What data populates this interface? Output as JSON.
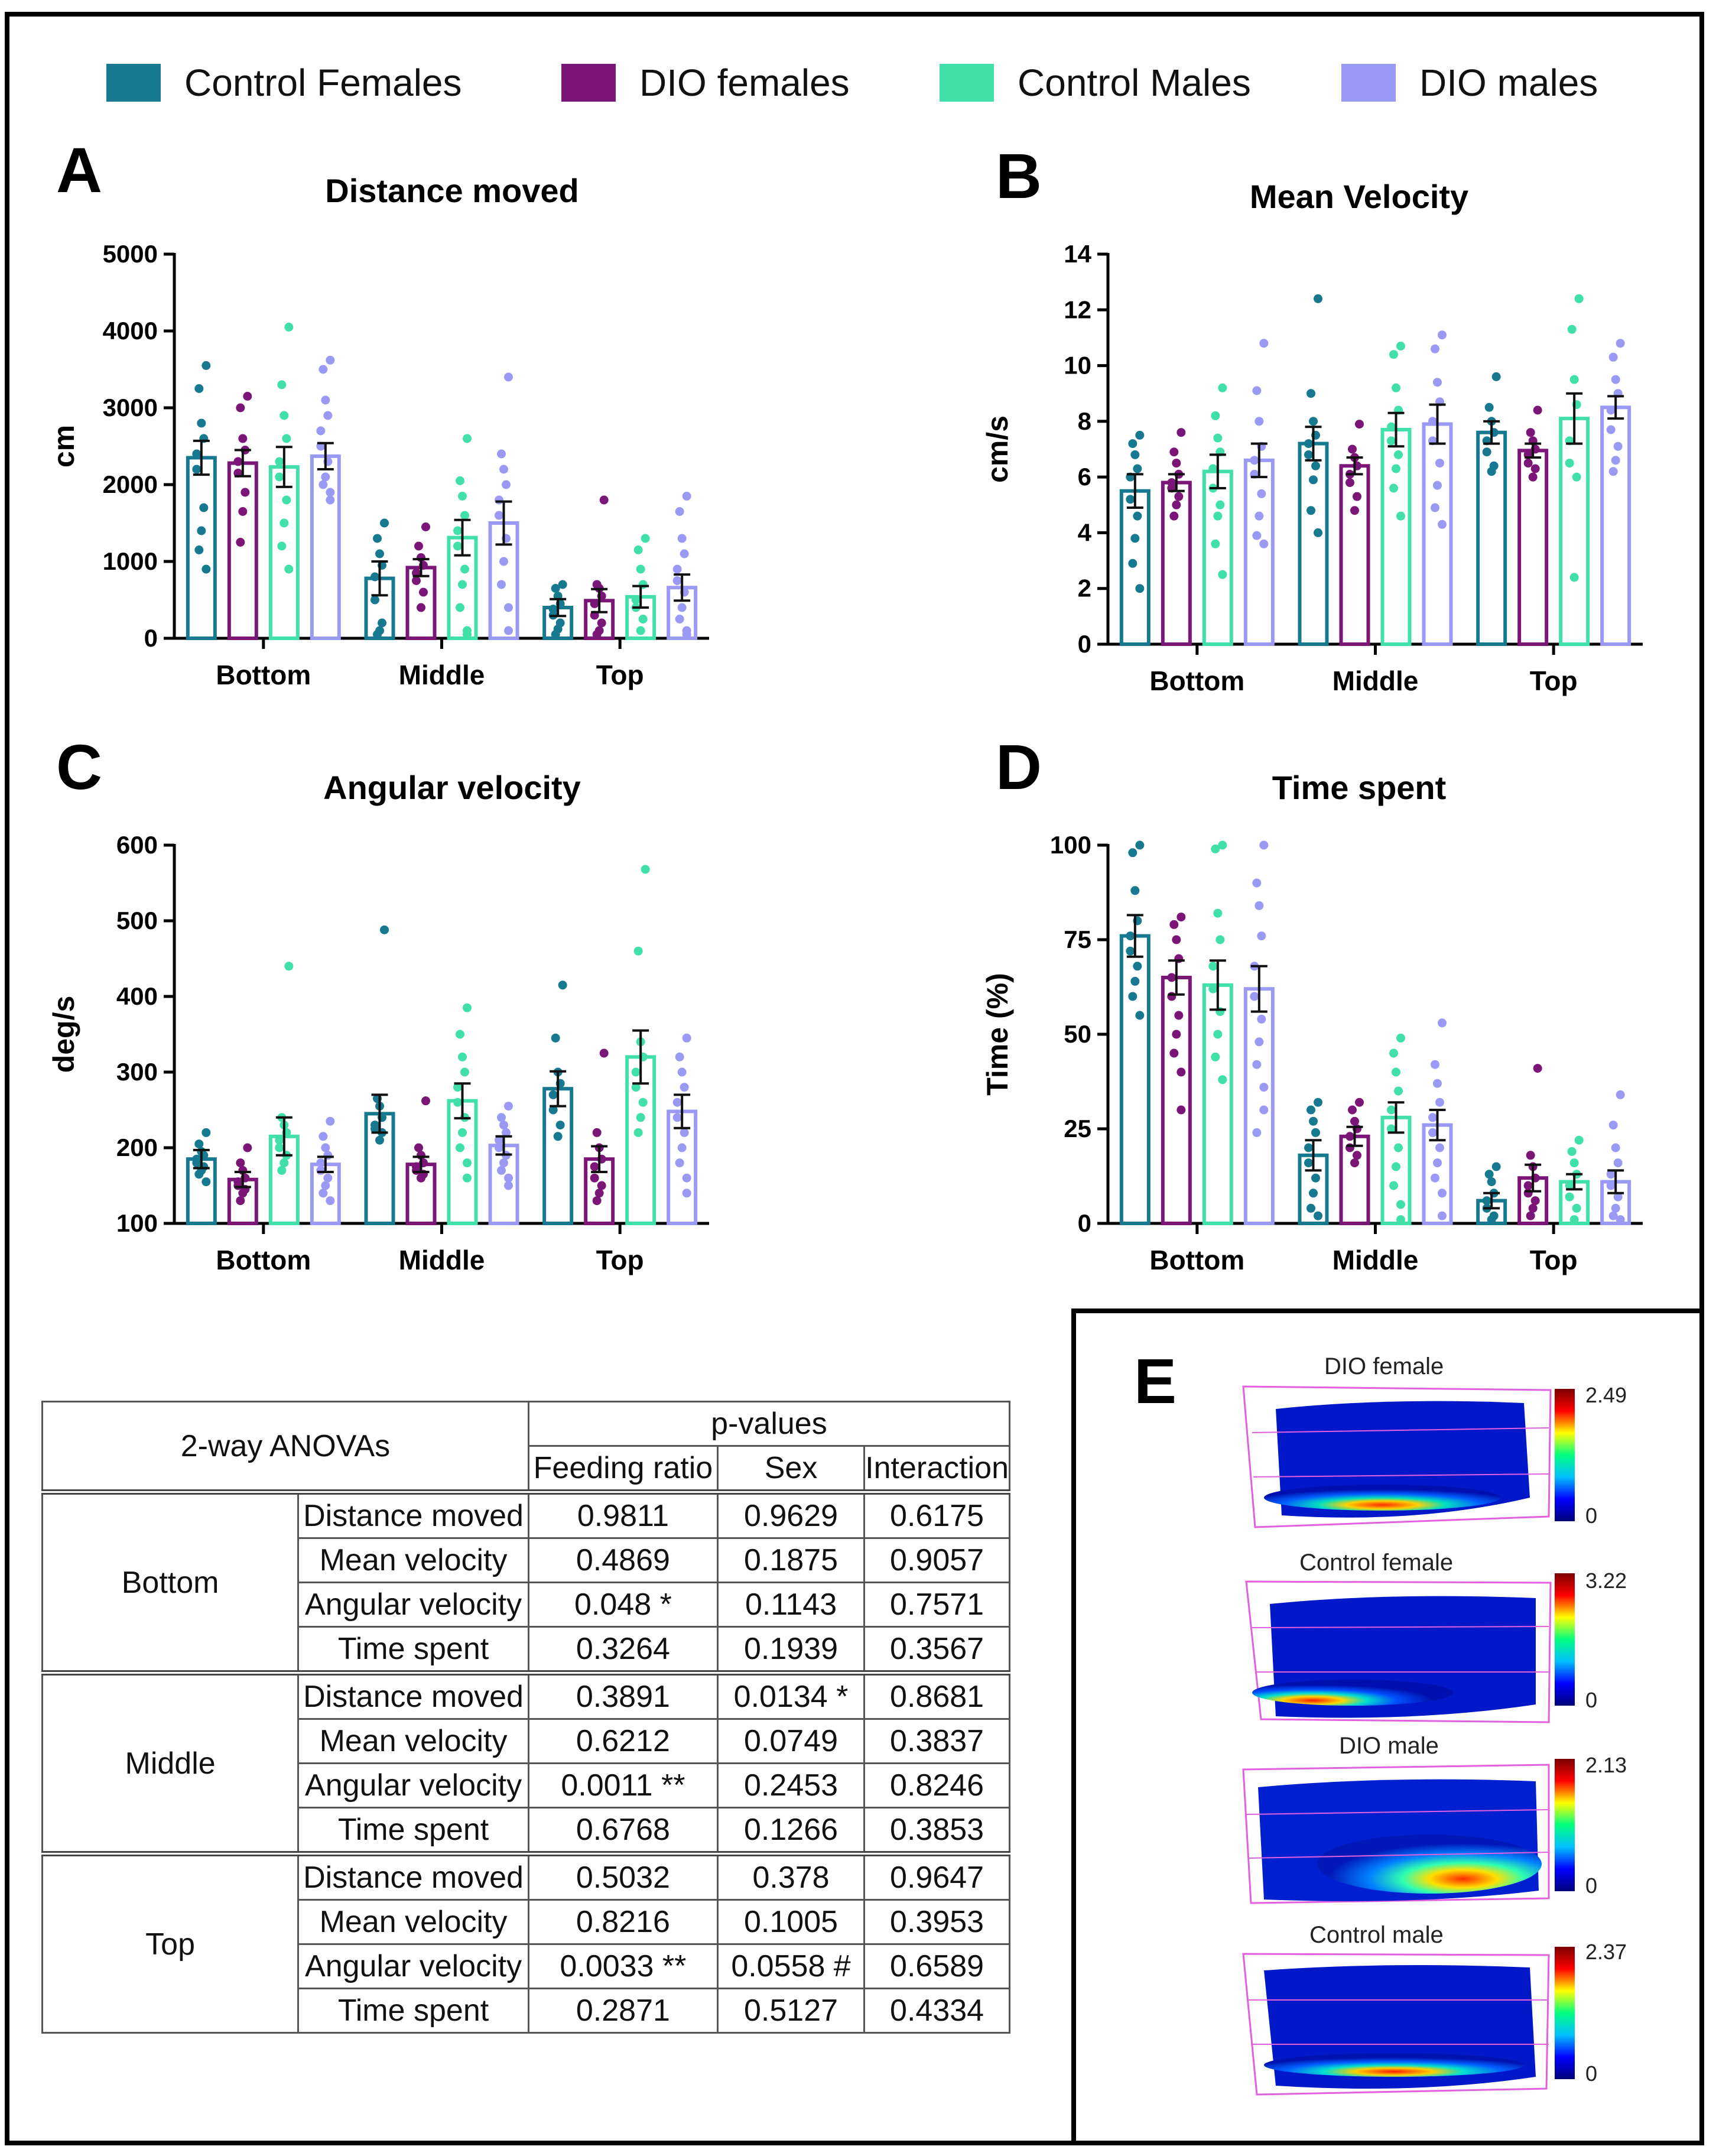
{
  "legend": [
    {
      "label": "Control Females",
      "color": "#17798f"
    },
    {
      "label": "DIO females",
      "color": "#7b1578"
    },
    {
      "label": "Control Males",
      "color": "#40e0a8"
    },
    {
      "label": "DIO males",
      "color": "#9a9af5"
    }
  ],
  "panels": {
    "A": {
      "letter": "A",
      "title": "Distance moved"
    },
    "B": {
      "letter": "B",
      "title": "Mean Velocity"
    },
    "C": {
      "letter": "C",
      "title": "Angular velocity"
    },
    "D": {
      "letter": "D",
      "title": "Time spent"
    },
    "E": {
      "letter": "E"
    }
  },
  "chart_data": [
    {
      "id": "A",
      "type": "bar",
      "title": "Distance moved",
      "ylabel": "cm",
      "ylim": [
        0,
        5000
      ],
      "yticks": [
        0,
        1000,
        2000,
        3000,
        4000,
        5000
      ],
      "categories": [
        "Bottom",
        "Middle",
        "Top"
      ],
      "series": [
        {
          "name": "Control Females",
          "values": [
            2350,
            780,
            400
          ],
          "sem": [
            220,
            220,
            110
          ],
          "points": [
            [
              3550,
              3250,
              2800,
              2600,
              2400,
              2200,
              1700,
              1400,
              1150,
              900
            ],
            [
              1500,
              1300,
              1100,
              950,
              800,
              500,
              200,
              100,
              50
            ],
            [
              700,
              650,
              550,
              450,
              380,
              300,
              200,
              120,
              50
            ]
          ]
        },
        {
          "name": "DIO females",
          "values": [
            2280,
            920,
            490
          ],
          "sem": [
            170,
            110,
            150
          ],
          "points": [
            [
              3150,
              3000,
              2600,
              2450,
              2300,
              2150,
              1900,
              1650,
              1250
            ],
            [
              1450,
              1200,
              1050,
              950,
              850,
              750,
              600,
              400
            ],
            [
              1800,
              700,
              650,
              550,
              450,
              300,
              200,
              100,
              50
            ]
          ]
        },
        {
          "name": "Control Males",
          "values": [
            2230,
            1310,
            540
          ],
          "sem": [
            260,
            230,
            140
          ],
          "points": [
            [
              4050,
              3300,
              2900,
              2600,
              2300,
              2100,
              1800,
              1500,
              1200,
              900
            ],
            [
              2600,
              2050,
              1850,
              1600,
              1400,
              1200,
              900,
              700,
              400,
              100,
              50
            ],
            [
              1300,
              1150,
              900,
              700,
              500,
              400,
              250,
              100
            ]
          ]
        },
        {
          "name": "DIO males",
          "values": [
            2370,
            1500,
            660
          ],
          "sem": [
            170,
            280,
            170
          ],
          "points": [
            [
              3620,
              3500,
              3100,
              2900,
              2700,
              2500,
              2300,
              2100,
              2000,
              1900,
              1800
            ],
            [
              3400,
              2400,
              2200,
              2000,
              1800,
              1600,
              1300,
              1000,
              700,
              400,
              100
            ],
            [
              1850,
              1650,
              1300,
              1100,
              900,
              750,
              600,
              400,
              250,
              100,
              50
            ]
          ]
        }
      ]
    },
    {
      "id": "B",
      "type": "bar",
      "title": "Mean Velocity",
      "ylabel": "cm/s",
      "ylim": [
        0,
        14
      ],
      "yticks": [
        0,
        2,
        4,
        6,
        8,
        10,
        12,
        14
      ],
      "categories": [
        "Bottom",
        "Middle",
        "Top"
      ],
      "series": [
        {
          "name": "Control Females",
          "values": [
            5.5,
            7.2,
            7.6
          ],
          "sem": [
            0.6,
            0.6,
            0.4
          ],
          "points": [
            [
              7.5,
              7.2,
              6.8,
              6.3,
              6.0,
              5.2,
              4.6,
              3.8,
              2.9,
              2.0
            ],
            [
              12.4,
              9.0,
              8.0,
              7.5,
              7.2,
              6.8,
              6.4,
              5.9,
              4.8,
              4.0
            ],
            [
              9.6,
              8.5,
              8.0,
              7.6,
              7.3,
              6.9,
              6.4,
              6.2
            ]
          ]
        },
        {
          "name": "DIO females",
          "values": [
            5.8,
            6.4,
            6.95
          ],
          "sem": [
            0.3,
            0.3,
            0.25
          ],
          "points": [
            [
              7.6,
              6.9,
              6.5,
              6.1,
              5.8,
              5.6,
              5.3,
              5.0,
              4.6
            ],
            [
              7.9,
              7.0,
              6.7,
              6.4,
              6.1,
              5.8,
              5.3,
              4.8
            ],
            [
              8.4,
              7.6,
              7.3,
              7.0,
              6.8,
              6.5,
              6.3,
              6.0
            ]
          ]
        },
        {
          "name": "Control Males",
          "values": [
            6.2,
            7.7,
            8.1
          ],
          "sem": [
            0.6,
            0.6,
            0.9
          ],
          "points": [
            [
              9.2,
              8.2,
              7.4,
              6.9,
              6.3,
              5.6,
              5.0,
              4.6,
              3.6,
              2.5
            ],
            [
              10.7,
              10.4,
              9.2,
              8.4,
              7.8,
              7.3,
              6.8,
              6.3,
              5.6,
              4.6
            ],
            [
              12.4,
              11.3,
              9.5,
              8.6,
              7.3,
              6.5,
              6.0,
              2.4
            ]
          ]
        },
        {
          "name": "DIO males",
          "values": [
            6.6,
            7.9,
            8.5
          ],
          "sem": [
            0.6,
            0.7,
            0.4
          ],
          "points": [
            [
              10.8,
              9.1,
              8.0,
              7.1,
              6.6,
              6.1,
              5.4,
              4.6,
              3.9,
              3.6
            ],
            [
              11.1,
              10.6,
              9.4,
              8.7,
              8.0,
              7.3,
              6.5,
              5.7,
              4.9,
              4.3
            ],
            [
              10.8,
              10.3,
              9.5,
              9.0,
              8.4,
              7.7,
              7.1,
              6.6,
              6.2
            ]
          ]
        }
      ]
    },
    {
      "id": "C",
      "type": "bar",
      "title": "Angular velocity",
      "ylabel": "deg/s",
      "ylim": [
        100,
        600
      ],
      "yticks": [
        100,
        200,
        300,
        400,
        500,
        600
      ],
      "categories": [
        "Bottom",
        "Middle",
        "Top"
      ],
      "series": [
        {
          "name": "Control Females",
          "values": [
            185,
            245,
            278
          ],
          "sem": [
            12,
            25,
            23
          ],
          "points": [
            [
              220,
              205,
              195,
              190,
              185,
              180,
              175,
              170,
              165,
              155
            ],
            [
              488,
              265,
              255,
              240,
              230,
              225,
              220,
              210
            ],
            [
              415,
              345,
              300,
              285,
              270,
              250,
              230,
              215
            ]
          ]
        },
        {
          "name": "DIO females",
          "values": [
            158,
            178,
            185
          ],
          "sem": [
            10,
            10,
            17
          ],
          "points": [
            [
              200,
              180,
              170,
              160,
              155,
              150,
              145,
              140,
              130
            ],
            [
              262,
              200,
              190,
              180,
              175,
              170,
              165,
              160
            ],
            [
              325,
              220,
              200,
              185,
              175,
              160,
              150,
              140,
              130
            ]
          ]
        },
        {
          "name": "Control Males",
          "values": [
            215,
            262,
            320
          ],
          "sem": [
            25,
            23,
            35
          ],
          "points": [
            [
              440,
              240,
              230,
              220,
              210,
              200,
              190,
              180,
              170
            ],
            [
              385,
              350,
              320,
              300,
              280,
              260,
              240,
              220,
              200,
              180,
              160
            ],
            [
              568,
              460,
              340,
              320,
              300,
              280,
              260,
              240,
              220
            ]
          ]
        },
        {
          "name": "DIO males",
          "values": [
            178,
            203,
            248
          ],
          "sem": [
            10,
            12,
            22
          ],
          "points": [
            [
              235,
              215,
              200,
              190,
              180,
              170,
              160,
              150,
              140,
              130
            ],
            [
              255,
              240,
              230,
              220,
              210,
              200,
              190,
              180,
              170,
              160,
              150
            ],
            [
              345,
              320,
              300,
              280,
              260,
              240,
              220,
              200,
              180,
              160,
              140
            ]
          ]
        }
      ]
    },
    {
      "id": "D",
      "type": "bar",
      "title": "Time spent",
      "ylabel": "Time (%)",
      "ylim": [
        0,
        100
      ],
      "yticks": [
        0,
        25,
        50,
        75,
        100
      ],
      "categories": [
        "Bottom",
        "Middle",
        "Top"
      ],
      "series": [
        {
          "name": "Control Females",
          "values": [
            76,
            18,
            6
          ],
          "sem": [
            5.5,
            4,
            2
          ],
          "points": [
            [
              100,
              98,
              88,
              80,
              76,
              72,
              68,
              64,
              60,
              55
            ],
            [
              32,
              30,
              27,
              24,
              20,
              16,
              12,
              8,
              4,
              2
            ],
            [
              15,
              13,
              11,
              8,
              6,
              4,
              2,
              1
            ]
          ]
        },
        {
          "name": "DIO females",
          "values": [
            65,
            23,
            12
          ],
          "sem": [
            4.5,
            2.5,
            3.5
          ],
          "points": [
            [
              81,
              79,
              75,
              70,
              65,
              60,
              55,
              50,
              45,
              40,
              30
            ],
            [
              32,
              30,
              27,
              25,
              23,
              20,
              18,
              16
            ],
            [
              41,
              18,
              15,
              12,
              10,
              8,
              6,
              4,
              2
            ]
          ]
        },
        {
          "name": "Control Males",
          "values": [
            63,
            28,
            11
          ],
          "sem": [
            6.5,
            4,
            2
          ],
          "points": [
            [
              100,
              99,
              82,
              75,
              68,
              62,
              56,
              50,
              44,
              38
            ],
            [
              49,
              45,
              40,
              35,
              30,
              25,
              20,
              15,
              10,
              5,
              1
            ],
            [
              22,
              19,
              16,
              13,
              10,
              7,
              4,
              1
            ]
          ]
        },
        {
          "name": "DIO males",
          "values": [
            62,
            26,
            11
          ],
          "sem": [
            6,
            4,
            3
          ],
          "points": [
            [
              100,
              90,
              84,
              76,
              68,
              60,
              54,
              48,
              42,
              36,
              30,
              24
            ],
            [
              53,
              42,
              37,
              32,
              28,
              24,
              20,
              16,
              12,
              8,
              2
            ],
            [
              34,
              26,
              20,
              16,
              13,
              10,
              7,
              4,
              2,
              1
            ]
          ]
        }
      ]
    }
  ],
  "table": {
    "header_left": "2-way ANOVAs",
    "header_group": "p-values",
    "columns": [
      "Feeding ratio",
      "Sex",
      "Interaction"
    ],
    "groups": [
      {
        "name": "Bottom",
        "rows": [
          {
            "measure": "Distance moved",
            "vals": [
              "0.9811",
              "0.9629",
              "0.6175"
            ]
          },
          {
            "measure": "Mean velocity",
            "vals": [
              "0.4869",
              "0.1875",
              "0.9057"
            ]
          },
          {
            "measure": "Angular velocity",
            "vals": [
              "0.048 *",
              "0.1143",
              "0.7571"
            ]
          },
          {
            "measure": "Time spent",
            "vals": [
              "0.3264",
              "0.1939",
              "0.3567"
            ]
          }
        ]
      },
      {
        "name": "Middle",
        "rows": [
          {
            "measure": "Distance moved",
            "vals": [
              "0.3891",
              "0.0134 *",
              "0.8681"
            ]
          },
          {
            "measure": "Mean velocity",
            "vals": [
              "0.6212",
              "0.0749",
              "0.3837"
            ]
          },
          {
            "measure": "Angular velocity",
            "vals": [
              "0.0011 **",
              "0.2453",
              "0.8246"
            ]
          },
          {
            "measure": "Time spent",
            "vals": [
              "0.6768",
              "0.1266",
              "0.3853"
            ]
          }
        ]
      },
      {
        "name": "Top",
        "rows": [
          {
            "measure": "Distance moved",
            "vals": [
              "0.5032",
              "0.378",
              "0.9647"
            ]
          },
          {
            "measure": "Mean velocity",
            "vals": [
              "0.8216",
              "0.1005",
              "0.3953"
            ]
          },
          {
            "measure": "Angular velocity",
            "vals": [
              "0.0033 **",
              "0.0558 #",
              "0.6589"
            ]
          },
          {
            "measure": "Time spent",
            "vals": [
              "0.2871",
              "0.5127",
              "0.4334"
            ]
          }
        ]
      }
    ]
  },
  "heatmaps": [
    {
      "title": "DIO female",
      "max": "2.49",
      "min": "0"
    },
    {
      "title": "Control female",
      "max": "3.22",
      "min": "0"
    },
    {
      "title": "DIO male",
      "max": "2.13",
      "min": "0"
    },
    {
      "title": "Control male",
      "max": "2.37",
      "min": "0"
    }
  ]
}
